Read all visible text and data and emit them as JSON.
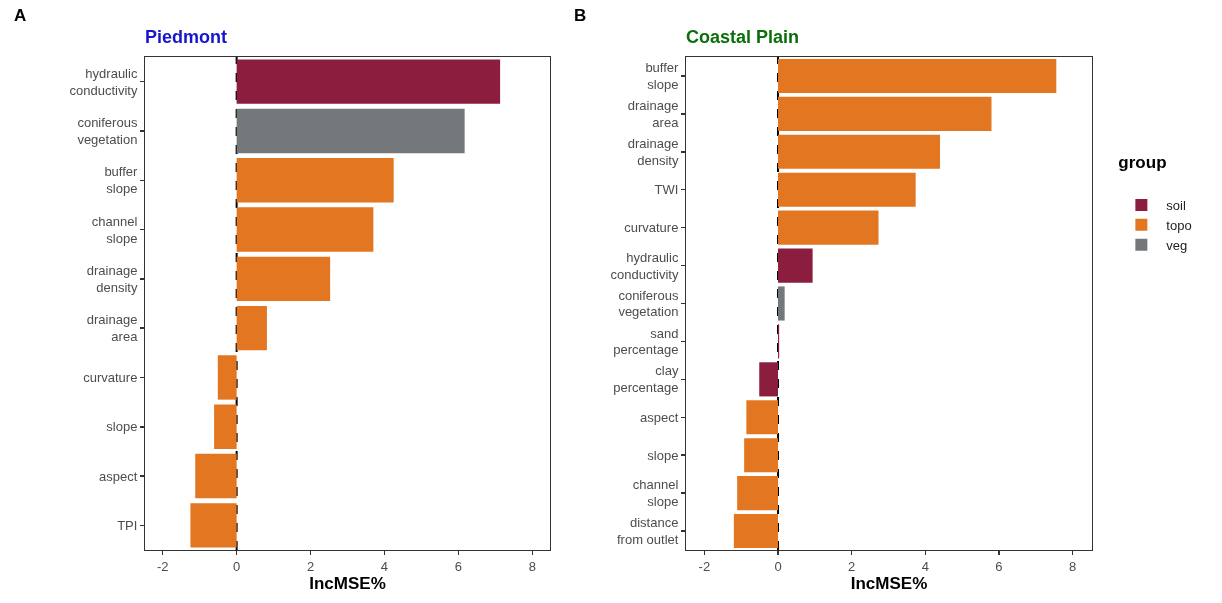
{
  "chart_data": [
    {
      "type": "bar",
      "orientation": "horizontal",
      "title": "Piedmont",
      "xlabel": "IncMSE%",
      "annotations": [
        "A"
      ],
      "categories": [
        "hydraulic conductivity",
        "coniferous vegetation",
        "buffer slope",
        "channel slope",
        "drainage density",
        "drainage area",
        "curvature",
        "slope",
        "aspect",
        "TPI"
      ],
      "series": [
        {
          "color": "#8b1e3f",
          "values": [
            7.13,
            null,
            null,
            null,
            null,
            null,
            null,
            null,
            null,
            null
          ]
        },
        {
          "color": "#e37620",
          "values": [
            null,
            null,
            4.25,
            3.7,
            2.53,
            0.82,
            -0.51,
            -0.61,
            -1.12,
            -1.25
          ]
        },
        {
          "color": "#75787b",
          "values": [
            null,
            6.17,
            null,
            null,
            null,
            null,
            null,
            null,
            null,
            null
          ]
        }
      ],
      "xlim": [
        -2.48,
        8.48
      ],
      "xticks": [
        -2,
        0,
        2,
        4,
        6,
        8
      ],
      "grid": false,
      "legend": false,
      "ref_lines": [
        {
          "axis": "x",
          "value": 0,
          "color": "#000000",
          "line_style": "dashed"
        }
      ]
    },
    {
      "type": "bar",
      "orientation": "horizontal",
      "title": "Coastal Plain",
      "xlabel": "IncMSE%",
      "annotations": [
        "B"
      ],
      "legend_title": "group",
      "categories": [
        "buffer slope",
        "drainage area",
        "drainage density",
        "TWI",
        "curvature",
        "hydraulic conductivity",
        "coniferous vegetation",
        "sand percentage",
        "clay percentage",
        "aspect",
        "slope",
        "channel slope",
        "distance from outlet"
      ],
      "series": [
        {
          "name": "soil",
          "color": "#8b1e3f",
          "values": [
            null,
            null,
            null,
            null,
            null,
            0.94,
            null,
            0.03,
            -0.51,
            null,
            null,
            null,
            null
          ]
        },
        {
          "name": "topo",
          "color": "#e37620",
          "values": [
            7.56,
            5.8,
            4.4,
            3.74,
            2.73,
            null,
            null,
            null,
            null,
            -0.86,
            -0.92,
            -1.11,
            -1.2
          ]
        },
        {
          "name": "veg",
          "color": "#75787b",
          "values": [
            null,
            null,
            null,
            null,
            null,
            null,
            0.18,
            null,
            null,
            null,
            null,
            null,
            null
          ]
        }
      ],
      "xlim": [
        -2.5,
        8.53
      ],
      "xticks": [
        -2,
        0,
        2,
        4,
        6,
        8
      ],
      "grid": false,
      "legend": "right",
      "ref_lines": [
        {
          "axis": "x",
          "value": 0,
          "color": "#000000",
          "line_style": "dashed"
        }
      ]
    }
  ]
}
